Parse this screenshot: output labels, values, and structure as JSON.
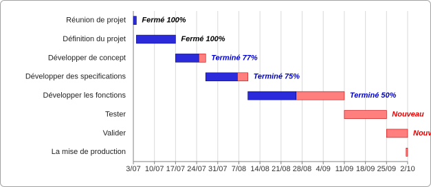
{
  "chart_data": {
    "type": "gantt",
    "categories": [
      "Réunion de projet",
      "Définition du projet",
      "Développer de concept",
      "Développer des specifications",
      "Développer les fonctions",
      "Tester",
      "Valider",
      "La mise de production"
    ],
    "start": [
      0,
      1,
      14,
      24,
      38,
      70,
      84,
      90.5
    ],
    "duration": [
      1,
      13,
      10,
      14,
      32,
      14,
      7,
      0.5
    ],
    "percent_complete": [
      100,
      100,
      77,
      75,
      50,
      0,
      0,
      0
    ],
    "status_labels": [
      "Fermé 100%",
      "Fermé 100%",
      "Terminé 77%",
      "Terminé 75%",
      "Terminé 50%",
      "Nouveau",
      "Nouveau",
      null
    ],
    "xlim": [
      0,
      91
    ],
    "xticks": [
      {
        "value": 0,
        "label": "3/07"
      },
      {
        "value": 7,
        "label": "10/07"
      },
      {
        "value": 14,
        "label": "17/07"
      },
      {
        "value": 21,
        "label": "24/07"
      },
      {
        "value": 28,
        "label": "31/07"
      },
      {
        "value": 35,
        "label": "7/08"
      },
      {
        "value": 42,
        "label": "14/08"
      },
      {
        "value": 49,
        "label": "21/08"
      },
      {
        "value": 56,
        "label": "28/08"
      },
      {
        "value": 63,
        "label": "4/09"
      },
      {
        "value": 70,
        "label": "11/09"
      },
      {
        "value": 77,
        "label": "18/09"
      },
      {
        "value": 84,
        "label": "25/09"
      },
      {
        "value": 91,
        "label": "2/10"
      }
    ],
    "grid": true,
    "colors": {
      "done": "#2b2bdc",
      "remaining": "#ff7f7f",
      "label_done": "#000000",
      "label_progress": "#0000cc",
      "label_new": "#e00000"
    }
  }
}
